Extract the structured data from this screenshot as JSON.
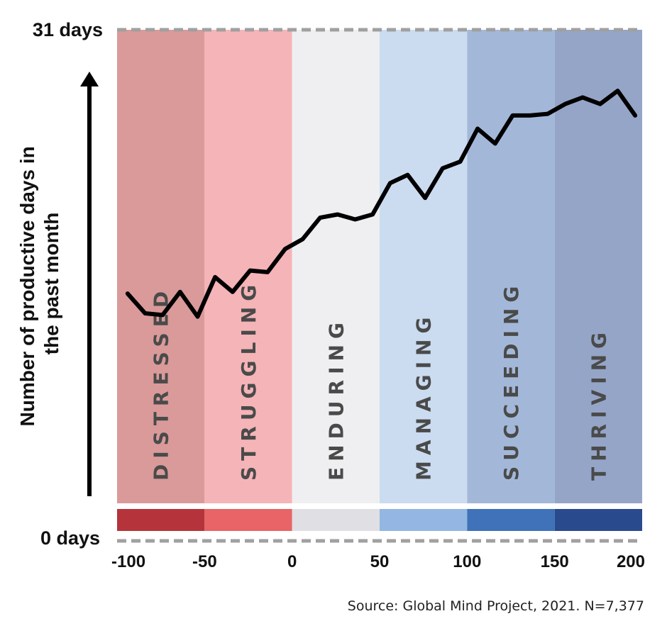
{
  "chart_data": {
    "type": "line",
    "xlim": [
      -100,
      200
    ],
    "ylim": [
      0,
      31
    ],
    "x_ticks": [
      "-100",
      "-50",
      "0",
      "50",
      "100",
      "150",
      "200"
    ],
    "y_top_label": "31 days",
    "y_bottom_label": "0 days",
    "ylabel_lines": [
      "Number of productive days in",
      "the past month"
    ],
    "bands": [
      {
        "label": "DISTRESSED",
        "range": [
          -100,
          -50
        ],
        "fill": "#da9a9a",
        "bar": "#b5333b"
      },
      {
        "label": "STRUGGLING",
        "range": [
          -50,
          0
        ],
        "fill": "#f5b4b7",
        "bar": "#e86466"
      },
      {
        "label": "ENDURING",
        "range": [
          0,
          50
        ],
        "fill": "#efeff1",
        "bar": "#e0dfe4"
      },
      {
        "label": "MANAGING",
        "range": [
          50,
          100
        ],
        "fill": "#cbdcf1",
        "bar": "#93b7e2"
      },
      {
        "label": "SUCCEEDING",
        "range": [
          100,
          150
        ],
        "fill": "#a3b8d9",
        "bar": "#3f72b8"
      },
      {
        "label": "THRIVING",
        "range": [
          150,
          200
        ],
        "fill": "#95a5c7",
        "bar": "#2a4a8e"
      }
    ],
    "x": [
      -94,
      -84,
      -74,
      -64,
      -54,
      -44,
      -34,
      -24,
      -14,
      -4,
      6,
      16,
      26,
      36,
      46,
      56,
      66,
      76,
      86,
      96,
      106,
      116,
      126,
      136,
      146,
      156,
      166,
      176,
      186,
      196
    ],
    "y": [
      15.0,
      13.8,
      13.7,
      15.1,
      13.6,
      16.0,
      15.1,
      16.4,
      16.3,
      17.7,
      18.3,
      19.6,
      19.8,
      19.5,
      19.8,
      21.7,
      22.2,
      20.8,
      22.6,
      23.0,
      25.0,
      24.1,
      25.8,
      25.8,
      25.9,
      26.5,
      26.9,
      26.5,
      27.3,
      25.8
    ],
    "source": "Source: Global Mind Project, 2021. N=7,377"
  }
}
